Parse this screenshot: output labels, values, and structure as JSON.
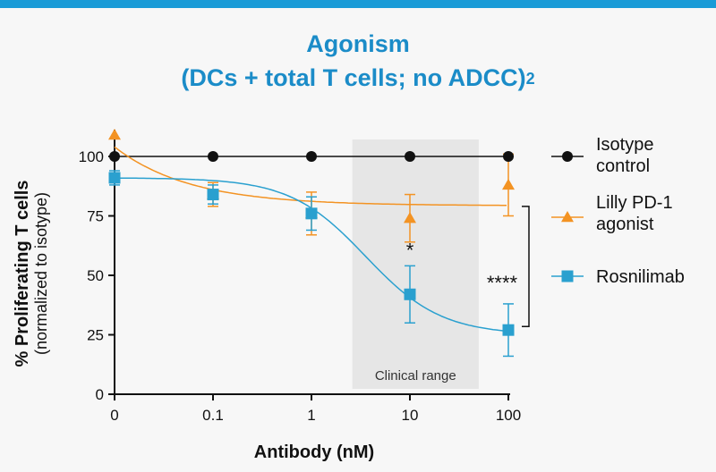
{
  "colors": {
    "bar": "#1a9bd7",
    "title": "#1b8cc8",
    "isotype": "#111111",
    "lilly": "#f39323",
    "rosnilimab": "#2aa0cf",
    "region": "#e6e6e6"
  },
  "chart_data": {
    "type": "line",
    "title_line1": "Agonism",
    "title_line2": "(DCs + total T cells; no ADCC)",
    "title_superscript": "2",
    "xlabel": "Antibody (nM)",
    "ylabel": "% Proliferating T cells",
    "ylabel_secondary": "(normalized to isotype)",
    "x_categories": [
      "0",
      "0.1",
      "1",
      "10",
      "100"
    ],
    "x_scale": "log",
    "ylim": [
      0,
      100
    ],
    "y_ticks": [
      0,
      25,
      50,
      75,
      100
    ],
    "shaded_region": {
      "label": "Clinical range",
      "x_from": 2.6,
      "x_to": 50
    },
    "series": [
      {
        "name": "Isotype control",
        "marker": "circle",
        "x": [
          "0",
          "0.1",
          "1",
          "10",
          "100"
        ],
        "y": [
          100,
          100,
          100,
          100,
          100
        ],
        "error": [
          0,
          0,
          0,
          0,
          0
        ]
      },
      {
        "name": "Lilly PD-1 agonist",
        "marker": "triangle",
        "x": [
          "0",
          "0.1",
          "1",
          "10",
          "100"
        ],
        "y": [
          109,
          84,
          76,
          74,
          88
        ],
        "error": [
          0,
          5,
          9,
          10,
          13
        ]
      },
      {
        "name": "Rosnilimab",
        "marker": "square",
        "x": [
          "0",
          "0.1",
          "1",
          "10",
          "100"
        ],
        "y": [
          91,
          84,
          76,
          42,
          27
        ],
        "error": [
          3,
          4,
          7,
          12,
          11
        ]
      }
    ],
    "annotations": [
      {
        "text": "*",
        "x": "10"
      },
      {
        "text": "****",
        "between": "100"
      }
    ],
    "legend_position": "right"
  }
}
